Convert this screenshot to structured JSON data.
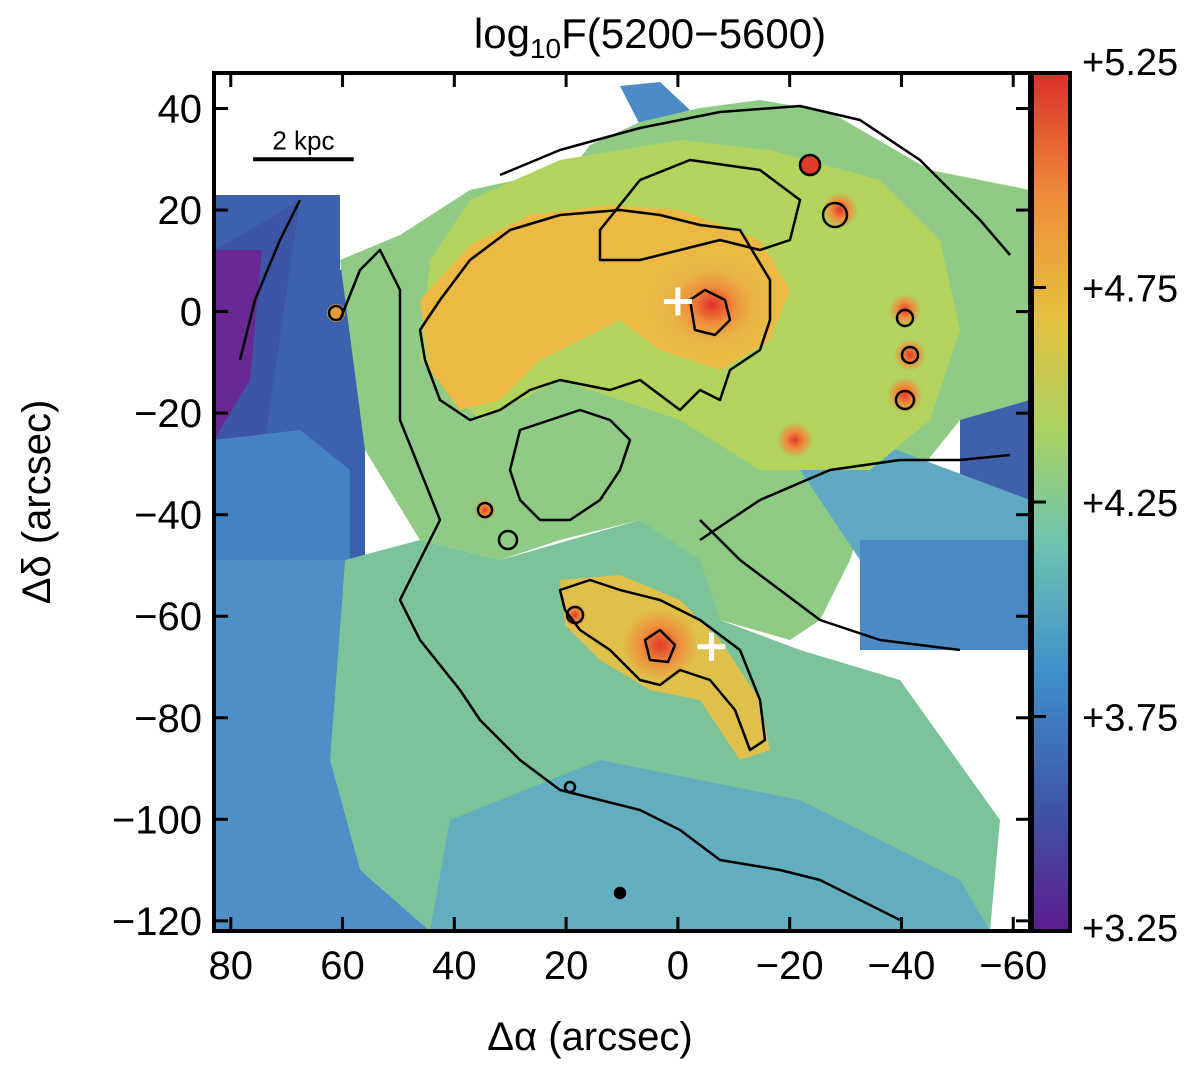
{
  "chart_data": {
    "type": "heatmap",
    "title": "log₁₀F(5200−5600)",
    "title_parts": {
      "prefix": "log",
      "subscript": "10",
      "suffix": "F(5200−5600)"
    },
    "xlabel": "Δα (arcsec)",
    "ylabel": "Δδ (arcsec)",
    "xlim": [
      83,
      -63
    ],
    "ylim": [
      -122,
      47
    ],
    "x_ticks": [
      80,
      60,
      40,
      20,
      0,
      -20,
      -40,
      -60
    ],
    "x_tick_labels": [
      "80",
      "60",
      "40",
      "20",
      "0",
      "−20",
      "−40",
      "−60"
    ],
    "y_ticks": [
      40,
      20,
      0,
      -20,
      -40,
      -60,
      -80,
      -100,
      -120
    ],
    "y_tick_labels": [
      "40",
      "20",
      "0",
      "−20",
      "−40",
      "−60",
      "−80",
      "−100",
      "−120"
    ],
    "colorbar": {
      "range": [
        3.25,
        5.25
      ],
      "ticks": [
        5.25,
        4.75,
        4.25,
        3.75,
        3.25
      ],
      "tick_labels": [
        "+5.25",
        "+4.75",
        "+4.25",
        "+3.75",
        "+3.25"
      ],
      "colors": [
        "#5d1c8e",
        "#3f54a6",
        "#3f8fcb",
        "#6ec3b0",
        "#a9d264",
        "#e6bf3d",
        "#ef8a3a",
        "#dc2f2a"
      ]
    },
    "scale_bar": {
      "label": "2 kpc",
      "x_from": 76,
      "x_to": 58,
      "y": 30
    },
    "markers": [
      {
        "name": "nucleus-north",
        "x": 0,
        "y": 2,
        "color": "#ffffff"
      },
      {
        "name": "nucleus-south",
        "x": -6,
        "y": -66,
        "color": "#ffffff"
      }
    ],
    "grid": false,
    "legend": "none"
  }
}
